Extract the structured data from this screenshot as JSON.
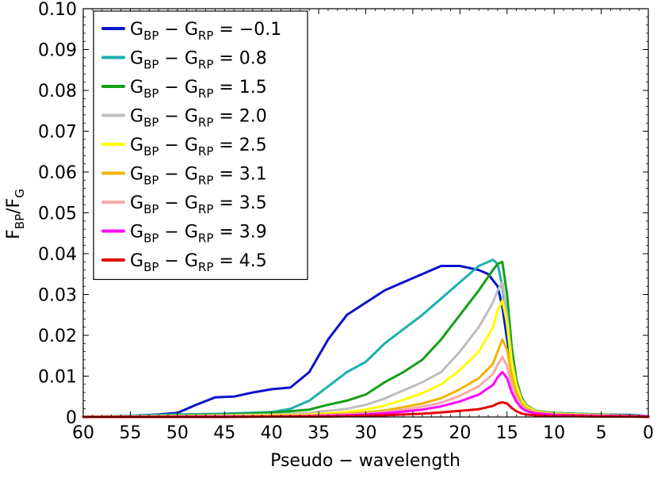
{
  "chart_data": {
    "type": "line",
    "title": "",
    "xlabel": "Pseudo − wavelength",
    "ylabel": {
      "main": "F",
      "sub1": "BP",
      "slash": "/F",
      "sub2": "G"
    },
    "xlim": [
      60,
      0
    ],
    "x_reversed": true,
    "ylim": [
      0,
      0.1
    ],
    "x_ticks": [
      60,
      55,
      50,
      45,
      40,
      35,
      30,
      25,
      20,
      15,
      10,
      5,
      0
    ],
    "y_ticks": [
      0,
      0.01,
      0.02,
      0.03,
      0.04,
      0.05,
      0.06,
      0.07,
      0.08,
      0.09,
      0.1
    ],
    "y_tick_labels": [
      "0",
      "0.01",
      "0.02",
      "0.03",
      "0.04",
      "0.05",
      "0.06",
      "0.07",
      "0.08",
      "0.09",
      "0.10"
    ],
    "grid": false,
    "legend": {
      "position": "top-left",
      "prefix_main": "G",
      "prefix_sub1": "BP",
      "minus": " − ",
      "prefix_main2": "G",
      "prefix_sub2": "RP",
      "equals": " = "
    },
    "series": [
      {
        "label_value": "−0.1",
        "color": "#0a14c8",
        "x": [
          60,
          55,
          52,
          50,
          48,
          46,
          44,
          42,
          40,
          38,
          36,
          34,
          32,
          30,
          28,
          26,
          24,
          22,
          20,
          18,
          17,
          16,
          15.5,
          15,
          14.5,
          14,
          13.5,
          13,
          12,
          11,
          10,
          8,
          5,
          2,
          0
        ],
        "y": [
          0,
          0.0003,
          0.0006,
          0.001,
          0.003,
          0.0048,
          0.005,
          0.006,
          0.0068,
          0.0072,
          0.011,
          0.019,
          0.025,
          0.028,
          0.031,
          0.033,
          0.035,
          0.037,
          0.037,
          0.036,
          0.035,
          0.032,
          0.027,
          0.019,
          0.012,
          0.007,
          0.004,
          0.0025,
          0.0015,
          0.0012,
          0.001,
          0.0008,
          0.0006,
          0.0005,
          0.0002
        ]
      },
      {
        "label_value": "0.8",
        "color": "#1ab0b0",
        "x": [
          60,
          55,
          50,
          45,
          40,
          38,
          36,
          34,
          32,
          30,
          28,
          26,
          24,
          22,
          20,
          18,
          16.5,
          16,
          15.5,
          15,
          14.5,
          14,
          13.5,
          13,
          12,
          11,
          10,
          8,
          5,
          2,
          0
        ],
        "y": [
          0,
          0.0003,
          0.0006,
          0.0008,
          0.0012,
          0.002,
          0.004,
          0.0075,
          0.011,
          0.0135,
          0.018,
          0.0215,
          0.025,
          0.029,
          0.033,
          0.037,
          0.0385,
          0.0375,
          0.032,
          0.022,
          0.012,
          0.007,
          0.004,
          0.0025,
          0.0015,
          0.0012,
          0.001,
          0.0008,
          0.0006,
          0.0004,
          0.0001
        ]
      },
      {
        "label_value": "1.5",
        "color": "#14a014",
        "x": [
          60,
          55,
          50,
          45,
          40,
          36,
          34,
          32,
          30,
          28,
          26,
          24,
          22,
          20,
          18,
          16.5,
          16,
          15.5,
          15,
          14.5,
          14,
          13.5,
          13,
          12,
          11,
          10,
          8,
          5,
          2,
          0
        ],
        "y": [
          0,
          0.0002,
          0.0004,
          0.0006,
          0.001,
          0.0018,
          0.003,
          0.004,
          0.0055,
          0.0085,
          0.011,
          0.014,
          0.019,
          0.025,
          0.031,
          0.036,
          0.0375,
          0.038,
          0.03,
          0.017,
          0.009,
          0.005,
          0.003,
          0.0016,
          0.0012,
          0.001,
          0.0008,
          0.0006,
          0.0004,
          0.0001
        ]
      },
      {
        "label_value": "2.0",
        "color": "#bebebe",
        "x": [
          60,
          55,
          50,
          45,
          40,
          36,
          34,
          32,
          30,
          28,
          26,
          24,
          22,
          20,
          18,
          16.5,
          16,
          15.5,
          15,
          14.5,
          14,
          13.5,
          13,
          12,
          11,
          10,
          8,
          5,
          2,
          0
        ],
        "y": [
          0,
          0.0002,
          0.0003,
          0.0004,
          0.0006,
          0.001,
          0.0015,
          0.002,
          0.003,
          0.0045,
          0.0065,
          0.0085,
          0.011,
          0.016,
          0.022,
          0.028,
          0.031,
          0.033,
          0.025,
          0.014,
          0.008,
          0.0045,
          0.0028,
          0.0015,
          0.0011,
          0.0009,
          0.0007,
          0.0005,
          0.0003,
          0.0001
        ]
      },
      {
        "label_value": "2.5",
        "color": "#ffff00",
        "x": [
          60,
          55,
          50,
          45,
          40,
          36,
          34,
          32,
          30,
          28,
          26,
          24,
          22,
          20,
          18,
          16.5,
          16,
          15.5,
          15,
          14.5,
          14,
          13.5,
          13,
          12,
          11,
          10,
          8,
          5,
          2,
          0
        ],
        "y": [
          0,
          0.0001,
          0.0002,
          0.0003,
          0.0004,
          0.0006,
          0.0009,
          0.0012,
          0.0018,
          0.0028,
          0.0042,
          0.0058,
          0.008,
          0.0115,
          0.016,
          0.022,
          0.026,
          0.0285,
          0.023,
          0.013,
          0.0075,
          0.0042,
          0.0026,
          0.0014,
          0.001,
          0.0008,
          0.0006,
          0.0004,
          0.0002,
          0.0001
        ]
      },
      {
        "label_value": "3.1",
        "color": "#f0b400",
        "x": [
          60,
          55,
          50,
          45,
          40,
          36,
          34,
          32,
          30,
          28,
          26,
          24,
          22,
          20,
          18,
          16.5,
          16,
          15.5,
          15,
          14.5,
          14,
          13.5,
          13,
          12,
          11,
          10,
          8,
          5,
          2,
          0
        ],
        "y": [
          0,
          0.0001,
          0.0001,
          0.0002,
          0.0003,
          0.0004,
          0.0006,
          0.0008,
          0.0011,
          0.0016,
          0.0024,
          0.0033,
          0.0046,
          0.0068,
          0.0095,
          0.013,
          0.016,
          0.019,
          0.0165,
          0.01,
          0.006,
          0.0035,
          0.0022,
          0.0012,
          0.0009,
          0.0007,
          0.0005,
          0.0003,
          0.0002,
          0.0001
        ]
      },
      {
        "label_value": "3.5",
        "color": "#f5aaaa",
        "x": [
          60,
          55,
          50,
          45,
          40,
          36,
          34,
          32,
          30,
          28,
          26,
          24,
          22,
          20,
          18,
          16.5,
          16,
          15.5,
          15,
          14.5,
          14,
          13.5,
          13,
          12,
          11,
          10,
          8,
          5,
          2,
          0
        ],
        "y": [
          0,
          0.0001,
          0.0001,
          0.0002,
          0.0002,
          0.0003,
          0.0004,
          0.0006,
          0.0008,
          0.0012,
          0.0018,
          0.0025,
          0.0035,
          0.0052,
          0.0075,
          0.0105,
          0.0128,
          0.0147,
          0.0125,
          0.0078,
          0.0047,
          0.0028,
          0.0018,
          0.001,
          0.0008,
          0.0006,
          0.0004,
          0.0003,
          0.0002,
          0.0001
        ]
      },
      {
        "label_value": "3.9",
        "color": "#ff00ff",
        "x": [
          60,
          55,
          50,
          45,
          40,
          36,
          34,
          32,
          30,
          28,
          26,
          24,
          22,
          20,
          18,
          16.5,
          16,
          15.5,
          15,
          14.5,
          14,
          13.5,
          13,
          12,
          11,
          10,
          8,
          5,
          2,
          0
        ],
        "y": [
          0,
          0,
          0.0001,
          0.0001,
          0.0001,
          0.0002,
          0.0003,
          0.0004,
          0.0006,
          0.0009,
          0.0013,
          0.0018,
          0.0026,
          0.0038,
          0.0055,
          0.0078,
          0.0097,
          0.011,
          0.0095,
          0.006,
          0.0037,
          0.0023,
          0.0015,
          0.0009,
          0.0007,
          0.0005,
          0.0004,
          0.0003,
          0.0002,
          0.0001
        ]
      },
      {
        "label_value": "4.5",
        "color": "#e60000",
        "x": [
          60,
          55,
          50,
          45,
          40,
          36,
          34,
          32,
          30,
          28,
          26,
          24,
          22,
          20,
          18,
          16.5,
          16,
          15.5,
          15,
          14.5,
          14,
          13.5,
          13,
          12,
          11,
          10,
          8,
          5,
          2,
          0
        ],
        "y": [
          0,
          0,
          0,
          0,
          0.0001,
          0.0001,
          0.0001,
          0.0002,
          0.0003,
          0.0004,
          0.0006,
          0.0008,
          0.0011,
          0.0015,
          0.0019,
          0.0027,
          0.0033,
          0.0036,
          0.0033,
          0.0022,
          0.0014,
          0.0009,
          0.0006,
          0.0004,
          0.0003,
          0.0002,
          0.0002,
          0.0001,
          0.0001,
          0
        ]
      }
    ]
  }
}
